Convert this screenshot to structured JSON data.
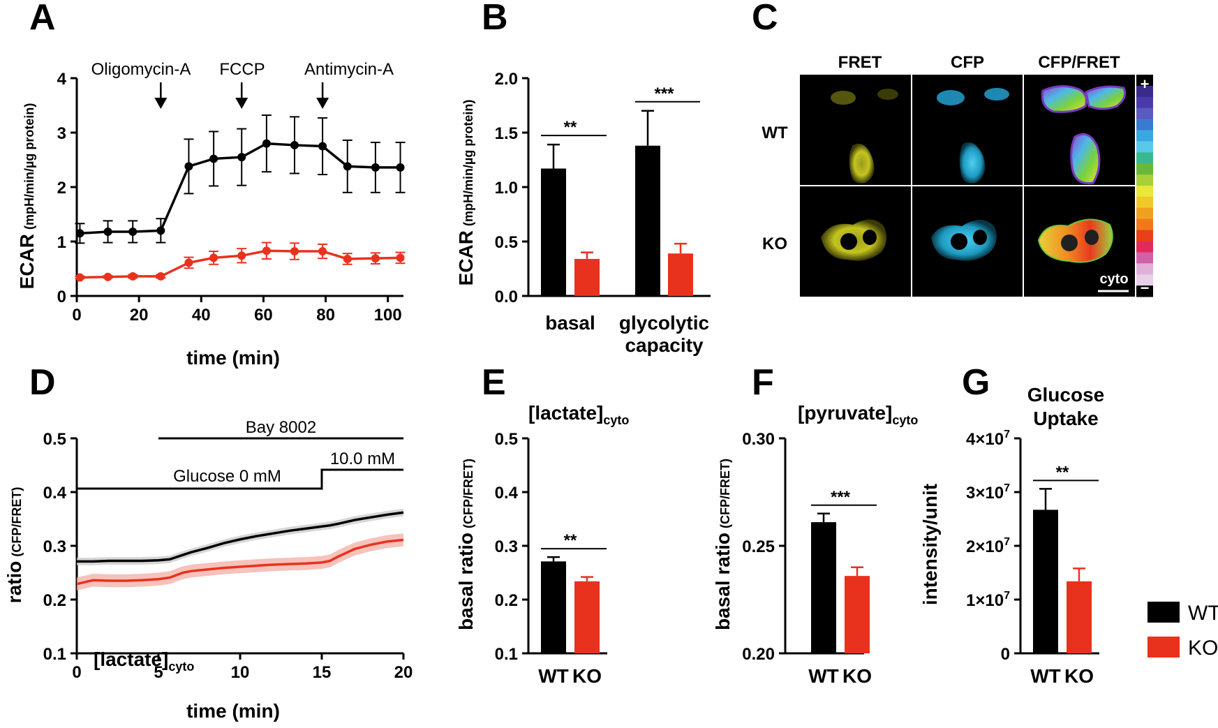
{
  "panel_letters": [
    "A",
    "B",
    "C",
    "D",
    "E",
    "F",
    "G"
  ],
  "colors": {
    "wt": "#000000",
    "ko": "#e8321e",
    "wt_band": "#cccccc",
    "ko_band": "#f4b3ab"
  },
  "legend": {
    "items": [
      {
        "label": "WT",
        "color": "#000000"
      },
      {
        "label": "KO",
        "color": "#e8321e"
      }
    ]
  },
  "imaging": {
    "columns": [
      "FRET",
      "CFP",
      "CFP/FRET"
    ],
    "rows": [
      "WT",
      "KO"
    ],
    "colorbar": {
      "plus": "+",
      "minus": "−"
    },
    "scalebar_label": "cyto"
  },
  "chart_data": [
    {
      "id": "A",
      "type": "line",
      "title": "",
      "xlabel": "time (min)",
      "ylabel": "ECAR",
      "ylabel_sub": "(mpH/min/µg protein)",
      "xlim": [
        0,
        105
      ],
      "ylim": [
        0,
        4
      ],
      "xticks": [
        "0",
        "20",
        "40",
        "60",
        "80",
        "100"
      ],
      "yticks": [
        "0",
        "1",
        "2",
        "3",
        "4"
      ],
      "annotations": [
        {
          "text": "Oligomycin-A",
          "x": 27
        },
        {
          "text": "FCCP",
          "x": 53
        },
        {
          "text": "Antimycin-A",
          "x": 79
        }
      ],
      "x": [
        1,
        10,
        18,
        27,
        36,
        44,
        53,
        61,
        70,
        79,
        87,
        96,
        104
      ],
      "series": [
        {
          "name": "WT",
          "values": [
            1.15,
            1.18,
            1.18,
            1.2,
            2.38,
            2.52,
            2.55,
            2.8,
            2.77,
            2.75,
            2.38,
            2.36,
            2.36
          ],
          "errors": [
            0.18,
            0.2,
            0.2,
            0.22,
            0.5,
            0.5,
            0.52,
            0.52,
            0.52,
            0.52,
            0.48,
            0.46,
            0.46
          ]
        },
        {
          "name": "KO",
          "values": [
            0.34,
            0.35,
            0.36,
            0.36,
            0.61,
            0.7,
            0.74,
            0.83,
            0.82,
            0.82,
            0.68,
            0.69,
            0.7
          ],
          "errors": [
            0.02,
            0.02,
            0.03,
            0.03,
            0.1,
            0.12,
            0.13,
            0.15,
            0.15,
            0.13,
            0.1,
            0.1,
            0.1
          ]
        }
      ]
    },
    {
      "id": "B",
      "type": "bar",
      "title": "",
      "xlabel": "",
      "ylabel": "ECAR",
      "ylabel_sub": "(mpH/min/µg protein)",
      "ylim": [
        0,
        2.0
      ],
      "yticks": [
        "0.0",
        "0.5",
        "1.0",
        "1.5",
        "2.0"
      ],
      "categories": [
        "basal",
        "glycolytic capacity"
      ],
      "category_lines": [
        [
          "basal"
        ],
        [
          "glycolytic",
          "capacity"
        ]
      ],
      "series": [
        {
          "name": "WT",
          "values": [
            1.17,
            1.38
          ],
          "errors": [
            0.22,
            0.32
          ]
        },
        {
          "name": "KO",
          "values": [
            0.34,
            0.39
          ],
          "errors": [
            0.06,
            0.09
          ]
        }
      ],
      "significance": [
        "**",
        "***"
      ]
    },
    {
      "id": "D",
      "type": "line",
      "title": "[lactate]",
      "title_sub": "cyto",
      "xlabel": "time (min)",
      "ylabel": "ratio",
      "ylabel_sub": "(CFP/FRET)",
      "xlim": [
        0,
        20
      ],
      "ylim": [
        0.1,
        0.5
      ],
      "xticks": [
        "0",
        "5",
        "10",
        "15",
        "20"
      ],
      "yticks": [
        "0.1",
        "0.2",
        "0.3",
        "0.4",
        "0.5"
      ],
      "annotations": [
        {
          "text": "Bay 8002",
          "from": 5,
          "to": 20
        },
        {
          "text": "Glucose 0 mM",
          "from": 0,
          "to": 15
        },
        {
          "text": "10.0 mM",
          "from": 15,
          "to": 20
        }
      ],
      "x": [
        0,
        1,
        2,
        3,
        4,
        5,
        5.7,
        6.5,
        7,
        8,
        9,
        10,
        11,
        12,
        13,
        14,
        15,
        15.5,
        16,
        17,
        18,
        19,
        20
      ],
      "series": [
        {
          "name": "WT",
          "band": 0.007,
          "values": [
            0.271,
            0.271,
            0.272,
            0.272,
            0.272,
            0.273,
            0.275,
            0.283,
            0.288,
            0.296,
            0.305,
            0.312,
            0.318,
            0.323,
            0.328,
            0.332,
            0.336,
            0.338,
            0.341,
            0.348,
            0.353,
            0.358,
            0.362
          ]
        },
        {
          "name": "KO",
          "band": 0.012,
          "values": [
            0.229,
            0.236,
            0.235,
            0.235,
            0.236,
            0.238,
            0.241,
            0.25,
            0.253,
            0.256,
            0.259,
            0.261,
            0.263,
            0.265,
            0.266,
            0.267,
            0.269,
            0.272,
            0.28,
            0.294,
            0.302,
            0.308,
            0.311
          ]
        }
      ]
    },
    {
      "id": "E",
      "type": "bar",
      "title": "[lactate]",
      "title_sub": "cyto",
      "xlabel": "",
      "ylabel": "basal ratio",
      "ylabel_sub": "(CFP/FRET)",
      "ylim": [
        0.1,
        0.5
      ],
      "yticks": [
        "0.1",
        "0.2",
        "0.3",
        "0.4",
        "0.5"
      ],
      "categories": [
        "WT",
        "KO"
      ],
      "values": [
        0.271,
        0.234
      ],
      "errors": [
        0.008,
        0.008
      ],
      "significance": "**"
    },
    {
      "id": "F",
      "type": "bar",
      "title": "[pyruvate]",
      "title_sub": "cyto",
      "xlabel": "",
      "ylabel": "basal ratio",
      "ylabel_sub": "(CFP/FRET)",
      "ylim": [
        0.2,
        0.3
      ],
      "yticks": [
        "0.20",
        "0.25",
        "0.30"
      ],
      "categories": [
        "WT",
        "KO"
      ],
      "values": [
        0.261,
        0.236
      ],
      "errors": [
        0.004,
        0.004
      ],
      "significance": "***"
    },
    {
      "id": "G",
      "type": "bar",
      "title": "Glucose",
      "title2": "Uptake",
      "xlabel": "",
      "ylabel": "intensity/unit",
      "ylim": [
        0,
        40000000
      ],
      "yticks": [
        {
          "base": "0",
          "exp": ""
        },
        {
          "base": "1×10",
          "exp": "7"
        },
        {
          "base": "2×10",
          "exp": "7"
        },
        {
          "base": "3×10",
          "exp": "7"
        },
        {
          "base": "4×10",
          "exp": "7"
        }
      ],
      "categories": [
        "WT",
        "KO"
      ],
      "values": [
        26700000,
        13400000
      ],
      "errors": [
        3900000,
        2400000
      ],
      "significance": "**"
    }
  ]
}
